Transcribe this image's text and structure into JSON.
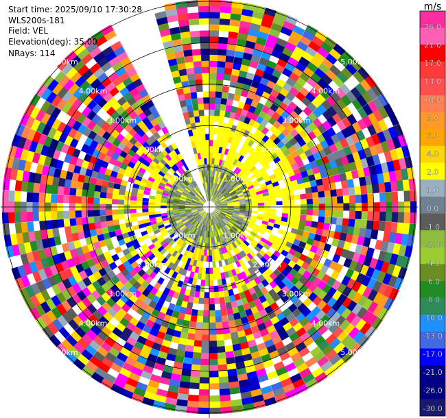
{
  "header": {
    "start_time": "Start time: 2025/09/10 17:30:28",
    "instrument": "WLS200s-181",
    "field": "Field: VEL",
    "elevation": "Elevation(deg): 35.00",
    "nrays": "NRays: 114"
  },
  "chart_data": {
    "type": "heatmap",
    "projection": "polar PPI",
    "field": "VEL",
    "units": "m/s",
    "elevation_deg": 35.0,
    "n_rays": 114,
    "max_range_km": 5.0,
    "range_ring_labels": [
      "1.00km",
      "2.00km",
      "3.00km",
      "4.00km",
      "5.00km"
    ],
    "missing_sector_deg": [
      331,
      344
    ],
    "colorbar": {
      "title": "m/s",
      "tick_labels": [
        "26.0",
        "21.0",
        "17.0",
        "13.0",
        "10.0",
        "8.0",
        "6.0",
        "4.0",
        "2.0",
        "1.0",
        "0.0",
        "-1.0",
        "-2.0",
        "-4.0",
        "-6.0",
        "-8.0",
        "-10.0",
        "-13.0",
        "-17.0",
        "-21.0",
        "-26.0",
        "-30.0"
      ],
      "colors": [
        "#ff2ea0",
        "#ff5fb4",
        "#ff0000",
        "#ff3a3a",
        "#ff5050",
        "#ff7f50",
        "#ff9a2a",
        "#ffa500",
        "#ffd700",
        "#ffff00",
        "#9ab0c0",
        "#708090",
        "#5c5c5c",
        "#8fbc3f",
        "#9acd32",
        "#6b8e23",
        "#228b22",
        "#2e8b57",
        "#1e90ff",
        "#4169e1",
        "#0000ff",
        "#00008b",
        "#000080",
        "#191970"
      ]
    }
  }
}
